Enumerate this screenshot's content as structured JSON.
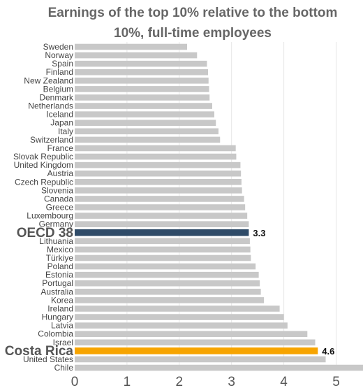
{
  "chart_data": {
    "type": "bar",
    "orientation": "horizontal",
    "title_lines": [
      "Earnings of the top 10% relative to the bottom",
      "10%, full-time employees"
    ],
    "xlim": [
      0,
      5.5
    ],
    "x_ticks": [
      0,
      1,
      2,
      3,
      4,
      5
    ],
    "grid": "vertical",
    "colors": {
      "default": "#c8c8c8",
      "oecd": "#2f4b68",
      "highlight": "#f7a400",
      "grid": "#e6e6e6",
      "label": "#444444"
    },
    "categories": [
      "Sweden",
      "Norway",
      "Spain",
      "Finland",
      "New Zealand",
      "Belgium",
      "Denmark",
      "Netherlands",
      "Iceland",
      "Japan",
      "Italy",
      "Switzerland",
      "France",
      "Slovak Republic",
      "United Kingdom",
      "Austria",
      "Czech Republic",
      "Slovenia",
      "Canada",
      "Greece",
      "Luxembourg",
      "Germany",
      "OECD 38",
      "Lithuania",
      "Mexico",
      "Türkiye",
      "Poland",
      "Estonia",
      "Portugal",
      "Australia",
      "Korea",
      "Ireland",
      "Hungary",
      "Latvia",
      "Colombia",
      "Israel",
      "Costa Rica",
      "United States",
      "Chile"
    ],
    "values": [
      2.15,
      2.34,
      2.53,
      2.55,
      2.56,
      2.57,
      2.58,
      2.63,
      2.67,
      2.7,
      2.75,
      2.78,
      3.08,
      3.09,
      3.17,
      3.18,
      3.19,
      3.2,
      3.24,
      3.26,
      3.3,
      3.33,
      3.33,
      3.35,
      3.36,
      3.37,
      3.46,
      3.52,
      3.54,
      3.56,
      3.62,
      3.92,
      4.0,
      4.07,
      4.45,
      4.6,
      4.65,
      4.8,
      5.55
    ],
    "highlights": [
      {
        "category": "OECD 38",
        "kind": "oecd",
        "value_label": "3.3"
      },
      {
        "category": "Costa Rica",
        "kind": "highlight",
        "value_label": "4.6"
      }
    ]
  }
}
